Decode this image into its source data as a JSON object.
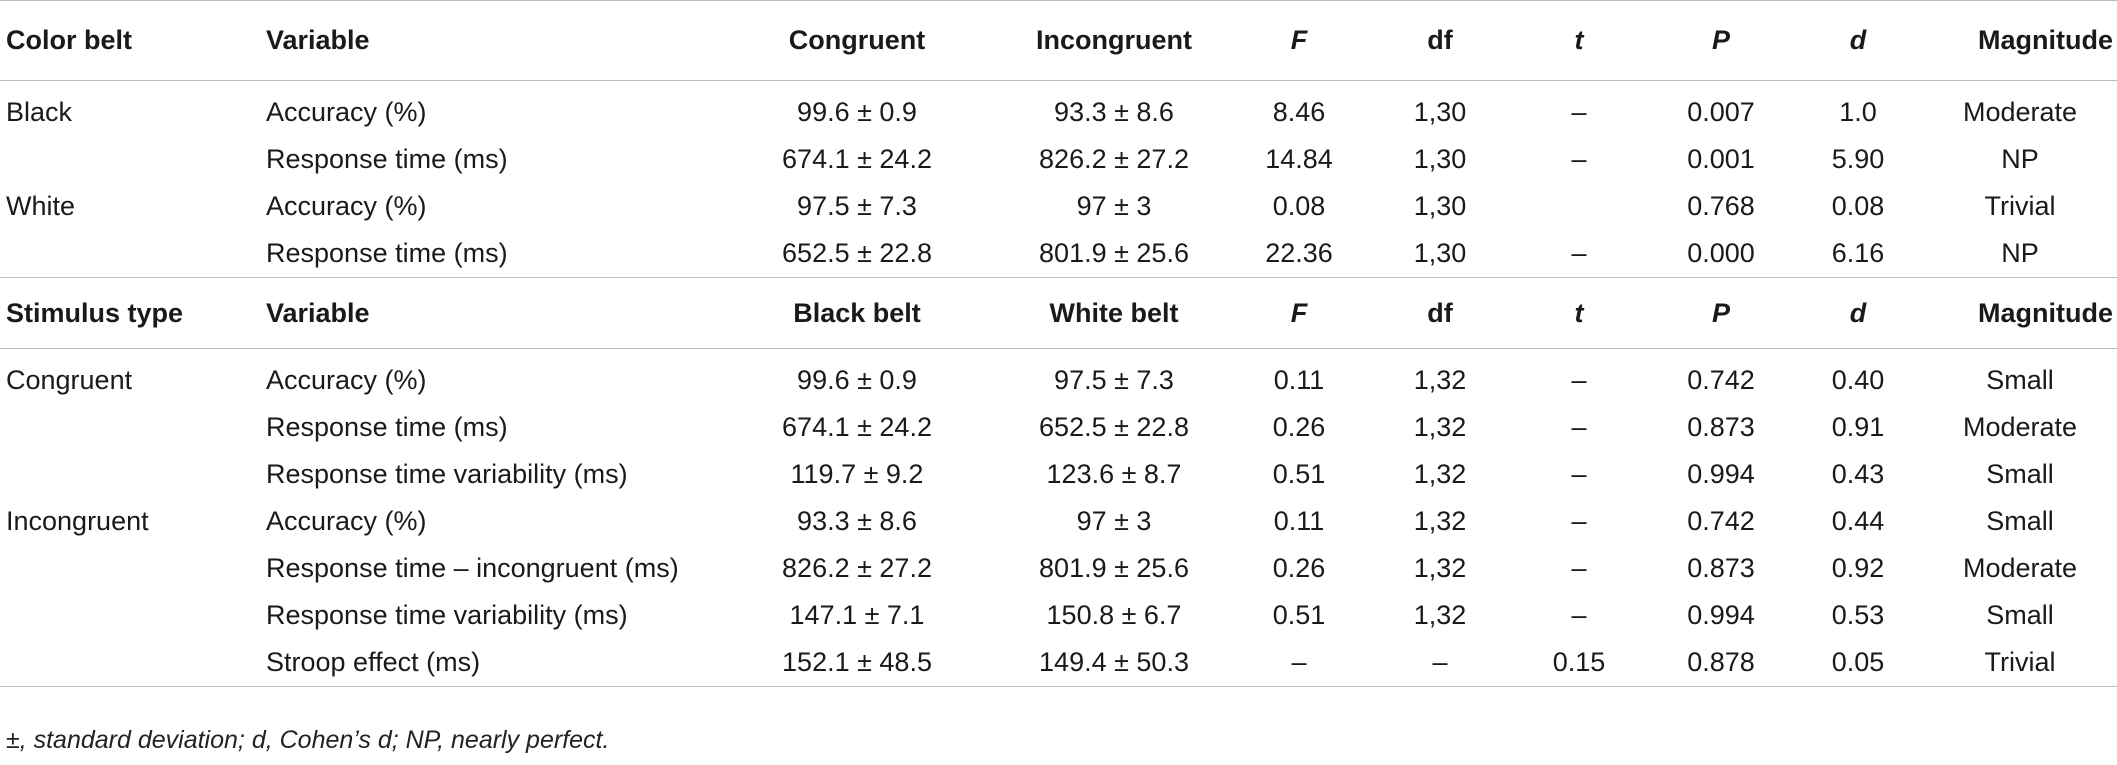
{
  "section1": {
    "headers": [
      "Color belt",
      "Variable",
      "Congruent",
      "Incongruent",
      "F",
      "df",
      "t",
      "P",
      "d",
      "Magnitude"
    ],
    "rows": [
      {
        "group": "Black",
        "variable": "Accuracy (%)",
        "a": "99.6 ± 0.9",
        "b": "93.3 ± 8.6",
        "F": "8.46",
        "df": "1,30",
        "t": "–",
        "P": "0.007",
        "d": "1.0",
        "magnitude": "Moderate"
      },
      {
        "group": "",
        "variable": "Response time (ms)",
        "a": "674.1 ± 24.2",
        "b": "826.2 ± 27.2",
        "F": "14.84",
        "df": "1,30",
        "t": "–",
        "P": "0.001",
        "d": "5.90",
        "magnitude": "NP"
      },
      {
        "group": "White",
        "variable": "Accuracy (%)",
        "a": "97.5 ± 7.3",
        "b": "97 ± 3",
        "F": "0.08",
        "df": "1,30",
        "t": "",
        "P": "0.768",
        "d": "0.08",
        "magnitude": "Trivial"
      },
      {
        "group": "",
        "variable": "Response time (ms)",
        "a": "652.5 ± 22.8",
        "b": "801.9 ± 25.6",
        "F": "22.36",
        "df": "1,30",
        "t": "–",
        "P": "0.000",
        "d": "6.16",
        "magnitude": "NP"
      }
    ]
  },
  "section2": {
    "headers": [
      "Stimulus type",
      "Variable",
      "Black belt",
      "White belt",
      "F",
      "df",
      "t",
      "P",
      "d",
      "Magnitude"
    ],
    "rows": [
      {
        "group": "Congruent",
        "variable": "Accuracy (%)",
        "a": "99.6 ± 0.9",
        "b": "97.5 ± 7.3",
        "F": "0.11",
        "df": "1,32",
        "t": "–",
        "P": "0.742",
        "d": "0.40",
        "magnitude": "Small"
      },
      {
        "group": "",
        "variable": "Response time (ms)",
        "a": "674.1 ± 24.2",
        "b": "652.5 ± 22.8",
        "F": "0.26",
        "df": "1,32",
        "t": "–",
        "P": "0.873",
        "d": "0.91",
        "magnitude": "Moderate"
      },
      {
        "group": "",
        "variable": "Response time variability (ms)",
        "a": "119.7 ± 9.2",
        "b": "123.6 ± 8.7",
        "F": "0.51",
        "df": "1,32",
        "t": "–",
        "P": "0.994",
        "d": "0.43",
        "magnitude": "Small"
      },
      {
        "group": "Incongruent",
        "variable": "Accuracy (%)",
        "a": "93.3 ± 8.6",
        "b": "97 ± 3",
        "F": "0.11",
        "df": "1,32",
        "t": "–",
        "P": "0.742",
        "d": "0.44",
        "magnitude": "Small"
      },
      {
        "group": "",
        "variable": "Response time – incongruent (ms)",
        "a": "826.2 ± 27.2",
        "b": "801.9 ± 25.6",
        "F": "0.26",
        "df": "1,32",
        "t": "–",
        "P": "0.873",
        "d": "0.92",
        "magnitude": "Moderate"
      },
      {
        "group": "",
        "variable": "Response time variability (ms)",
        "a": "147.1 ± 7.1",
        "b": "150.8 ± 6.7",
        "F": "0.51",
        "df": "1,32",
        "t": "–",
        "P": "0.994",
        "d": "0.53",
        "magnitude": "Small"
      },
      {
        "group": "",
        "variable": "Stroop effect (ms)",
        "a": "152.1 ± 48.5",
        "b": "149.4 ± 50.3",
        "F": "–",
        "df": "–",
        "t": "0.15",
        "P": "0.878",
        "d": "0.05",
        "magnitude": "Trivial"
      }
    ]
  },
  "footnote": "±, standard deviation; d, Cohen’s d; NP, nearly perfect."
}
